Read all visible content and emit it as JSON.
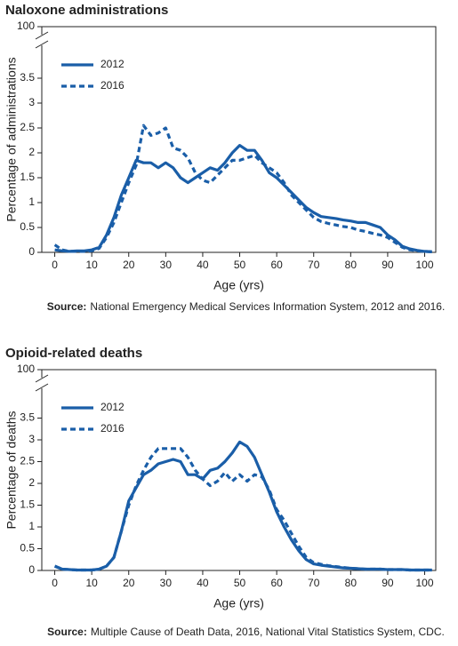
{
  "chart_data": [
    {
      "type": "line",
      "title": "Naloxone administrations",
      "xlabel": "Age (yrs)",
      "ylabel": "Percentage of administrations",
      "source_label": "Source:",
      "source": "National Emergency Medical Services Information System, 2012 and 2016.",
      "xlim": [
        -3.5,
        103
      ],
      "xticks": [
        0,
        10,
        20,
        30,
        40,
        50,
        60,
        70,
        80,
        90,
        100
      ],
      "ylim": [
        0,
        100
      ],
      "axis_break": [
        4,
        100
      ],
      "yticks": [
        0,
        0.5,
        1,
        1.5,
        2,
        2.5,
        3,
        3.5,
        100
      ],
      "x": [
        0,
        2,
        4,
        6,
        8,
        10,
        12,
        14,
        16,
        18,
        20,
        22,
        24,
        26,
        28,
        30,
        32,
        34,
        36,
        38,
        40,
        42,
        44,
        46,
        48,
        50,
        52,
        54,
        56,
        58,
        60,
        62,
        64,
        66,
        68,
        70,
        72,
        74,
        76,
        78,
        80,
        82,
        84,
        86,
        88,
        90,
        92,
        94,
        96,
        98,
        100,
        102
      ],
      "series": [
        {
          "name": "2012",
          "color": "#1a5ea8",
          "style": "solid",
          "values": [
            0.05,
            0.03,
            0.02,
            0.03,
            0.03,
            0.05,
            0.1,
            0.35,
            0.7,
            1.15,
            1.5,
            1.85,
            1.8,
            1.8,
            1.7,
            1.8,
            1.7,
            1.5,
            1.4,
            1.5,
            1.6,
            1.7,
            1.65,
            1.8,
            2.0,
            2.15,
            2.05,
            2.05,
            1.85,
            1.6,
            1.5,
            1.35,
            1.2,
            1.05,
            0.9,
            0.8,
            0.72,
            0.7,
            0.68,
            0.65,
            0.63,
            0.6,
            0.6,
            0.55,
            0.5,
            0.35,
            0.25,
            0.12,
            0.07,
            0.04,
            0.02,
            0.01
          ]
        },
        {
          "name": "2016",
          "color": "#1a5ea8",
          "style": "dashed",
          "values": [
            0.15,
            0.05,
            0.02,
            0.02,
            0.02,
            0.03,
            0.08,
            0.3,
            0.6,
            1.0,
            1.4,
            1.75,
            2.55,
            2.35,
            2.4,
            2.5,
            2.1,
            2.05,
            1.9,
            1.6,
            1.45,
            1.4,
            1.55,
            1.7,
            1.85,
            1.85,
            1.9,
            1.95,
            1.8,
            1.7,
            1.6,
            1.4,
            1.15,
            1.0,
            0.85,
            0.7,
            0.62,
            0.58,
            0.55,
            0.52,
            0.5,
            0.45,
            0.42,
            0.38,
            0.35,
            0.3,
            0.2,
            0.1,
            0.05,
            0.03,
            0.02,
            0.01
          ]
        }
      ]
    },
    {
      "type": "line",
      "title": "Opioid-related deaths",
      "xlabel": "Age (yrs)",
      "ylabel": "Percentage of deaths",
      "source_label": "Source:",
      "source": "Multiple Cause of Death Data, 2016, National Vital Statistics System, CDC.",
      "xlim": [
        -3.5,
        103
      ],
      "xticks": [
        0,
        10,
        20,
        30,
        40,
        50,
        60,
        70,
        80,
        90,
        100
      ],
      "ylim": [
        0,
        100
      ],
      "axis_break": [
        4,
        100
      ],
      "yticks": [
        0,
        0.5,
        1,
        1.5,
        2,
        2.5,
        3,
        3.5,
        100
      ],
      "x": [
        0,
        2,
        4,
        6,
        8,
        10,
        12,
        14,
        16,
        18,
        20,
        22,
        24,
        26,
        28,
        30,
        32,
        34,
        36,
        38,
        40,
        42,
        44,
        46,
        48,
        50,
        52,
        54,
        56,
        58,
        60,
        62,
        64,
        66,
        68,
        70,
        72,
        74,
        76,
        78,
        80,
        82,
        84,
        86,
        88,
        90,
        92,
        94,
        96,
        98,
        100,
        102
      ],
      "series": [
        {
          "name": "2012",
          "color": "#1a5ea8",
          "style": "solid",
          "values": [
            0.1,
            0.03,
            0.02,
            0.01,
            0.01,
            0.01,
            0.03,
            0.1,
            0.3,
            0.9,
            1.6,
            1.9,
            2.2,
            2.3,
            2.45,
            2.5,
            2.55,
            2.5,
            2.2,
            2.2,
            2.1,
            2.3,
            2.35,
            2.5,
            2.7,
            2.95,
            2.85,
            2.6,
            2.2,
            1.8,
            1.35,
            1.0,
            0.7,
            0.45,
            0.25,
            0.15,
            0.12,
            0.1,
            0.08,
            0.06,
            0.05,
            0.04,
            0.03,
            0.03,
            0.03,
            0.02,
            0.02,
            0.02,
            0.01,
            0.01,
            0.01,
            0.01
          ]
        },
        {
          "name": "2016",
          "color": "#1a5ea8",
          "style": "dashed",
          "values": [
            0.1,
            0.03,
            0.02,
            0.01,
            0.01,
            0.01,
            0.03,
            0.1,
            0.3,
            0.9,
            1.5,
            1.95,
            2.3,
            2.6,
            2.8,
            2.8,
            2.8,
            2.8,
            2.6,
            2.3,
            2.1,
            1.95,
            2.05,
            2.25,
            2.05,
            2.2,
            2.05,
            2.2,
            2.15,
            1.85,
            1.4,
            1.15,
            0.85,
            0.55,
            0.3,
            0.18,
            0.14,
            0.11,
            0.09,
            0.07,
            0.05,
            0.04,
            0.03,
            0.03,
            0.03,
            0.02,
            0.02,
            0.02,
            0.01,
            0.01,
            0.01,
            0.01
          ]
        }
      ]
    }
  ]
}
